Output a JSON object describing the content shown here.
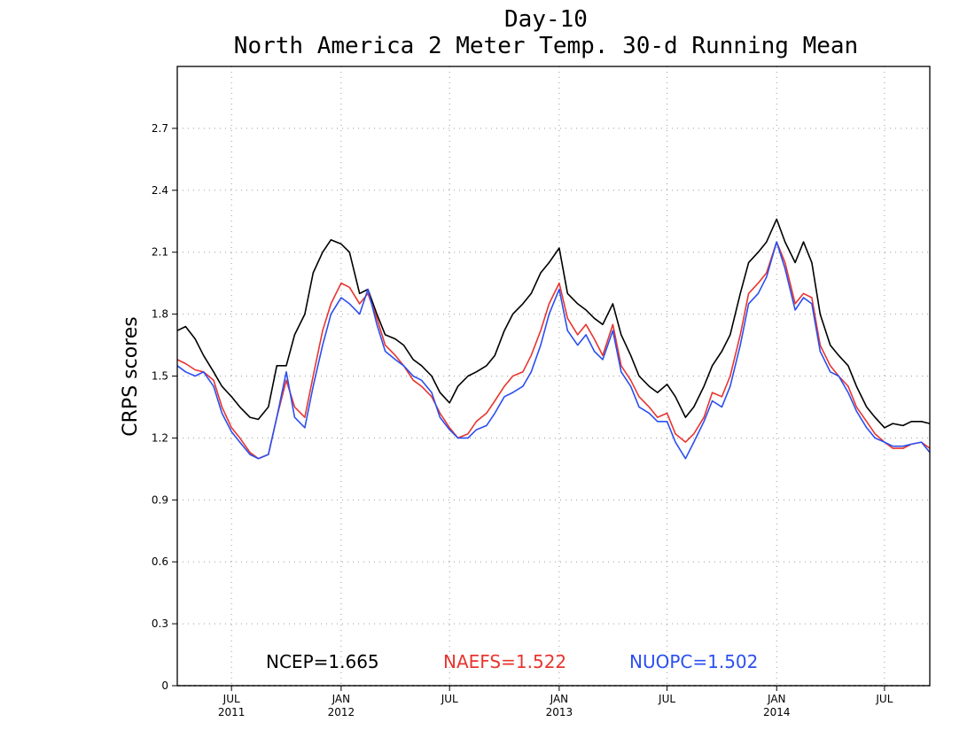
{
  "chart_data": {
    "type": "line",
    "title": "Day-10",
    "subtitle": "North America 2 Meter Temp. 30-d Running Mean",
    "xlabel": "",
    "ylabel": "CRPS scores",
    "ylim": [
      0,
      3.0
    ],
    "y_ticks": [
      "0",
      "0.3",
      "0.6",
      "0.9",
      "1.2",
      "1.5",
      "1.8",
      "2.1",
      "2.4",
      "2.7"
    ],
    "x_range": [
      "2011-04-01",
      "2014-09-15"
    ],
    "x_ticks": [
      {
        "date": "2011-07-01",
        "label": "JUL",
        "year": "2011"
      },
      {
        "date": "2012-01-01",
        "label": "JAN",
        "year": "2012"
      },
      {
        "date": "2012-07-01",
        "label": "JUL",
        "year": ""
      },
      {
        "date": "2013-01-01",
        "label": "JAN",
        "year": "2013"
      },
      {
        "date": "2013-07-01",
        "label": "JUL",
        "year": ""
      },
      {
        "date": "2014-01-01",
        "label": "JAN",
        "year": "2014"
      },
      {
        "date": "2014-07-01",
        "label": "JUL",
        "year": ""
      }
    ],
    "grid": true,
    "legend_position": "bottom",
    "series": [
      {
        "name": "NCEP",
        "mean_label": "NCEP=1.665",
        "color": "#000000",
        "points": [
          [
            "2011-04-01",
            1.72
          ],
          [
            "2011-04-15",
            1.74
          ],
          [
            "2011-05-01",
            1.68
          ],
          [
            "2011-05-15",
            1.6
          ],
          [
            "2011-06-01",
            1.52
          ],
          [
            "2011-06-15",
            1.45
          ],
          [
            "2011-07-01",
            1.4
          ],
          [
            "2011-07-15",
            1.35
          ],
          [
            "2011-08-01",
            1.3
          ],
          [
            "2011-08-15",
            1.29
          ],
          [
            "2011-09-01",
            1.35
          ],
          [
            "2011-09-15",
            1.55
          ],
          [
            "2011-10-01",
            1.55
          ],
          [
            "2011-10-15",
            1.7
          ],
          [
            "2011-11-01",
            1.8
          ],
          [
            "2011-11-15",
            2.0
          ],
          [
            "2011-12-01",
            2.1
          ],
          [
            "2011-12-15",
            2.16
          ],
          [
            "2012-01-01",
            2.14
          ],
          [
            "2012-01-15",
            2.1
          ],
          [
            "2012-02-01",
            1.9
          ],
          [
            "2012-02-15",
            1.92
          ],
          [
            "2012-03-01",
            1.8
          ],
          [
            "2012-03-15",
            1.7
          ],
          [
            "2012-04-01",
            1.68
          ],
          [
            "2012-04-15",
            1.65
          ],
          [
            "2012-05-01",
            1.58
          ],
          [
            "2012-05-15",
            1.55
          ],
          [
            "2012-06-01",
            1.5
          ],
          [
            "2012-06-15",
            1.42
          ],
          [
            "2012-07-01",
            1.37
          ],
          [
            "2012-07-15",
            1.45
          ],
          [
            "2012-08-01",
            1.5
          ],
          [
            "2012-08-15",
            1.52
          ],
          [
            "2012-09-01",
            1.55
          ],
          [
            "2012-09-15",
            1.6
          ],
          [
            "2012-10-01",
            1.72
          ],
          [
            "2012-10-15",
            1.8
          ],
          [
            "2012-11-01",
            1.85
          ],
          [
            "2012-11-15",
            1.9
          ],
          [
            "2012-12-01",
            2.0
          ],
          [
            "2012-12-15",
            2.05
          ],
          [
            "2013-01-01",
            2.12
          ],
          [
            "2013-01-15",
            1.9
          ],
          [
            "2013-02-01",
            1.85
          ],
          [
            "2013-02-15",
            1.82
          ],
          [
            "2013-03-01",
            1.78
          ],
          [
            "2013-03-15",
            1.75
          ],
          [
            "2013-04-01",
            1.85
          ],
          [
            "2013-04-15",
            1.7
          ],
          [
            "2013-05-01",
            1.6
          ],
          [
            "2013-05-15",
            1.5
          ],
          [
            "2013-06-01",
            1.45
          ],
          [
            "2013-06-15",
            1.42
          ],
          [
            "2013-07-01",
            1.46
          ],
          [
            "2013-07-15",
            1.4
          ],
          [
            "2013-08-01",
            1.3
          ],
          [
            "2013-08-15",
            1.35
          ],
          [
            "2013-09-01",
            1.45
          ],
          [
            "2013-09-15",
            1.55
          ],
          [
            "2013-10-01",
            1.62
          ],
          [
            "2013-10-15",
            1.7
          ],
          [
            "2013-11-01",
            1.9
          ],
          [
            "2013-11-15",
            2.05
          ],
          [
            "2013-12-01",
            2.1
          ],
          [
            "2013-12-15",
            2.15
          ],
          [
            "2014-01-01",
            2.26
          ],
          [
            "2014-01-15",
            2.15
          ],
          [
            "2014-02-01",
            2.05
          ],
          [
            "2014-02-15",
            2.15
          ],
          [
            "2014-03-01",
            2.05
          ],
          [
            "2014-03-15",
            1.8
          ],
          [
            "2014-04-01",
            1.65
          ],
          [
            "2014-04-15",
            1.6
          ],
          [
            "2014-05-01",
            1.55
          ],
          [
            "2014-05-15",
            1.45
          ],
          [
            "2014-06-01",
            1.35
          ],
          [
            "2014-06-15",
            1.3
          ],
          [
            "2014-07-01",
            1.25
          ],
          [
            "2014-07-15",
            1.27
          ],
          [
            "2014-08-01",
            1.26
          ],
          [
            "2014-08-15",
            1.28
          ],
          [
            "2014-09-01",
            1.28
          ],
          [
            "2014-09-15",
            1.27
          ]
        ]
      },
      {
        "name": "NAEFS",
        "mean_label": "NAEFS=1.522",
        "color": "#e8352f",
        "points": [
          [
            "2011-04-01",
            1.58
          ],
          [
            "2011-04-15",
            1.56
          ],
          [
            "2011-05-01",
            1.53
          ],
          [
            "2011-05-15",
            1.52
          ],
          [
            "2011-06-01",
            1.48
          ],
          [
            "2011-06-15",
            1.35
          ],
          [
            "2011-07-01",
            1.25
          ],
          [
            "2011-07-15",
            1.2
          ],
          [
            "2011-08-01",
            1.13
          ],
          [
            "2011-08-15",
            1.1
          ],
          [
            "2011-09-01",
            1.12
          ],
          [
            "2011-09-15",
            1.3
          ],
          [
            "2011-10-01",
            1.48
          ],
          [
            "2011-10-15",
            1.35
          ],
          [
            "2011-11-01",
            1.3
          ],
          [
            "2011-11-15",
            1.5
          ],
          [
            "2011-12-01",
            1.72
          ],
          [
            "2011-12-15",
            1.85
          ],
          [
            "2012-01-01",
            1.95
          ],
          [
            "2012-01-15",
            1.93
          ],
          [
            "2012-02-01",
            1.85
          ],
          [
            "2012-02-15",
            1.9
          ],
          [
            "2012-03-01",
            1.78
          ],
          [
            "2012-03-15",
            1.65
          ],
          [
            "2012-04-01",
            1.6
          ],
          [
            "2012-04-15",
            1.55
          ],
          [
            "2012-05-01",
            1.48
          ],
          [
            "2012-05-15",
            1.45
          ],
          [
            "2012-06-01",
            1.4
          ],
          [
            "2012-06-15",
            1.32
          ],
          [
            "2012-07-01",
            1.25
          ],
          [
            "2012-07-15",
            1.2
          ],
          [
            "2012-08-01",
            1.22
          ],
          [
            "2012-08-15",
            1.28
          ],
          [
            "2012-09-01",
            1.32
          ],
          [
            "2012-09-15",
            1.38
          ],
          [
            "2012-10-01",
            1.45
          ],
          [
            "2012-10-15",
            1.5
          ],
          [
            "2012-11-01",
            1.52
          ],
          [
            "2012-11-15",
            1.6
          ],
          [
            "2012-12-01",
            1.72
          ],
          [
            "2012-12-15",
            1.85
          ],
          [
            "2013-01-01",
            1.95
          ],
          [
            "2013-01-15",
            1.78
          ],
          [
            "2013-02-01",
            1.7
          ],
          [
            "2013-02-15",
            1.75
          ],
          [
            "2013-03-01",
            1.68
          ],
          [
            "2013-03-15",
            1.6
          ],
          [
            "2013-04-01",
            1.75
          ],
          [
            "2013-04-15",
            1.55
          ],
          [
            "2013-05-01",
            1.48
          ],
          [
            "2013-05-15",
            1.4
          ],
          [
            "2013-06-01",
            1.35
          ],
          [
            "2013-06-15",
            1.3
          ],
          [
            "2013-07-01",
            1.32
          ],
          [
            "2013-07-15",
            1.22
          ],
          [
            "2013-08-01",
            1.18
          ],
          [
            "2013-08-15",
            1.22
          ],
          [
            "2013-09-01",
            1.3
          ],
          [
            "2013-09-15",
            1.42
          ],
          [
            "2013-10-01",
            1.4
          ],
          [
            "2013-10-15",
            1.5
          ],
          [
            "2013-11-01",
            1.7
          ],
          [
            "2013-11-15",
            1.9
          ],
          [
            "2013-12-01",
            1.95
          ],
          [
            "2013-12-15",
            2.0
          ],
          [
            "2014-01-01",
            2.15
          ],
          [
            "2014-01-15",
            2.05
          ],
          [
            "2014-02-01",
            1.85
          ],
          [
            "2014-02-15",
            1.9
          ],
          [
            "2014-03-01",
            1.88
          ],
          [
            "2014-03-15",
            1.65
          ],
          [
            "2014-04-01",
            1.55
          ],
          [
            "2014-04-15",
            1.5
          ],
          [
            "2014-05-01",
            1.45
          ],
          [
            "2014-05-15",
            1.35
          ],
          [
            "2014-06-01",
            1.28
          ],
          [
            "2014-06-15",
            1.22
          ],
          [
            "2014-07-01",
            1.18
          ],
          [
            "2014-07-15",
            1.15
          ],
          [
            "2014-08-01",
            1.15
          ],
          [
            "2014-08-15",
            1.17
          ],
          [
            "2014-09-01",
            1.18
          ],
          [
            "2014-09-15",
            1.15
          ]
        ]
      },
      {
        "name": "NUOPC",
        "mean_label": "NUOPC=1.502",
        "color": "#2b4ff0",
        "points": [
          [
            "2011-04-01",
            1.55
          ],
          [
            "2011-04-15",
            1.52
          ],
          [
            "2011-05-01",
            1.5
          ],
          [
            "2011-05-15",
            1.52
          ],
          [
            "2011-06-01",
            1.45
          ],
          [
            "2011-06-15",
            1.32
          ],
          [
            "2011-07-01",
            1.23
          ],
          [
            "2011-07-15",
            1.18
          ],
          [
            "2011-08-01",
            1.12
          ],
          [
            "2011-08-15",
            1.1
          ],
          [
            "2011-09-01",
            1.12
          ],
          [
            "2011-09-15",
            1.3
          ],
          [
            "2011-10-01",
            1.52
          ],
          [
            "2011-10-15",
            1.3
          ],
          [
            "2011-11-01",
            1.25
          ],
          [
            "2011-11-15",
            1.45
          ],
          [
            "2011-12-01",
            1.65
          ],
          [
            "2011-12-15",
            1.8
          ],
          [
            "2012-01-01",
            1.88
          ],
          [
            "2012-01-15",
            1.85
          ],
          [
            "2012-02-01",
            1.8
          ],
          [
            "2012-02-15",
            1.92
          ],
          [
            "2012-03-01",
            1.75
          ],
          [
            "2012-03-15",
            1.62
          ],
          [
            "2012-04-01",
            1.58
          ],
          [
            "2012-04-15",
            1.55
          ],
          [
            "2012-05-01",
            1.5
          ],
          [
            "2012-05-15",
            1.48
          ],
          [
            "2012-06-01",
            1.42
          ],
          [
            "2012-06-15",
            1.3
          ],
          [
            "2012-07-01",
            1.24
          ],
          [
            "2012-07-15",
            1.2
          ],
          [
            "2012-08-01",
            1.2
          ],
          [
            "2012-08-15",
            1.24
          ],
          [
            "2012-09-01",
            1.26
          ],
          [
            "2012-09-15",
            1.32
          ],
          [
            "2012-10-01",
            1.4
          ],
          [
            "2012-10-15",
            1.42
          ],
          [
            "2012-11-01",
            1.45
          ],
          [
            "2012-11-15",
            1.52
          ],
          [
            "2012-12-01",
            1.65
          ],
          [
            "2012-12-15",
            1.8
          ],
          [
            "2013-01-01",
            1.92
          ],
          [
            "2013-01-15",
            1.72
          ],
          [
            "2013-02-01",
            1.65
          ],
          [
            "2013-02-15",
            1.7
          ],
          [
            "2013-03-01",
            1.62
          ],
          [
            "2013-03-15",
            1.58
          ],
          [
            "2013-04-01",
            1.72
          ],
          [
            "2013-04-15",
            1.52
          ],
          [
            "2013-05-01",
            1.45
          ],
          [
            "2013-05-15",
            1.35
          ],
          [
            "2013-06-01",
            1.32
          ],
          [
            "2013-06-15",
            1.28
          ],
          [
            "2013-07-01",
            1.28
          ],
          [
            "2013-07-15",
            1.18
          ],
          [
            "2013-08-01",
            1.1
          ],
          [
            "2013-08-15",
            1.18
          ],
          [
            "2013-09-01",
            1.28
          ],
          [
            "2013-09-15",
            1.38
          ],
          [
            "2013-10-01",
            1.35
          ],
          [
            "2013-10-15",
            1.45
          ],
          [
            "2013-11-01",
            1.65
          ],
          [
            "2013-11-15",
            1.85
          ],
          [
            "2013-12-01",
            1.9
          ],
          [
            "2013-12-15",
            1.98
          ],
          [
            "2014-01-01",
            2.15
          ],
          [
            "2014-01-15",
            2.02
          ],
          [
            "2014-02-01",
            1.82
          ],
          [
            "2014-02-15",
            1.88
          ],
          [
            "2014-03-01",
            1.85
          ],
          [
            "2014-03-15",
            1.62
          ],
          [
            "2014-04-01",
            1.52
          ],
          [
            "2014-04-15",
            1.5
          ],
          [
            "2014-05-01",
            1.42
          ],
          [
            "2014-05-15",
            1.33
          ],
          [
            "2014-06-01",
            1.25
          ],
          [
            "2014-06-15",
            1.2
          ],
          [
            "2014-07-01",
            1.18
          ],
          [
            "2014-07-15",
            1.16
          ],
          [
            "2014-08-01",
            1.16
          ],
          [
            "2014-08-15",
            1.17
          ],
          [
            "2014-09-01",
            1.18
          ],
          [
            "2014-09-15",
            1.13
          ]
        ]
      }
    ]
  }
}
